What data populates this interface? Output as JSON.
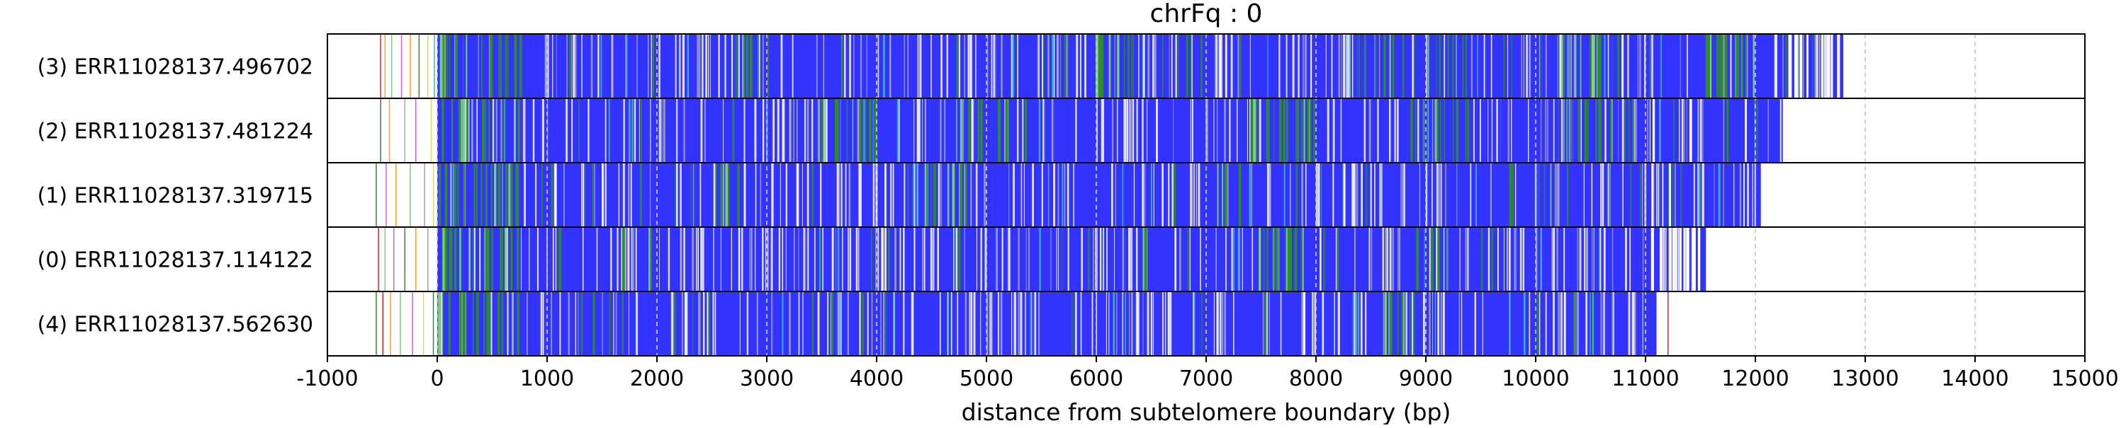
{
  "chart_data": {
    "type": "heatmap",
    "title": "chrFq : 0",
    "xlabel": "distance from subtelomere boundary (bp)",
    "ylabel": "",
    "xlim": [
      -1000,
      15000
    ],
    "x_ticks": [
      -1000,
      0,
      1000,
      2000,
      3000,
      4000,
      5000,
      6000,
      7000,
      8000,
      9000,
      10000,
      11000,
      12000,
      13000,
      14000,
      15000
    ],
    "x_tick_labels": [
      "-1000",
      "0",
      "1000",
      "2000",
      "3000",
      "4000",
      "5000",
      "6000",
      "7000",
      "8000",
      "9000",
      "10000",
      "11000",
      "12000",
      "13000",
      "14000",
      "15000"
    ],
    "grid": "vertical dashed at x ticks",
    "colors": {
      "base": "#3333ff",
      "green": "#2e8b2e",
      "light_green": "#7ccd7c",
      "white": "#ffffff",
      "grey": "#9aa0c8",
      "cyan": "#3fb6c8",
      "red": "#d62728",
      "orange": "#ff9f1c",
      "magenta": "#d060d0",
      "yellow": "#e8d44d"
    },
    "reads": [
      {
        "label": "(3) ERR11028137.496702",
        "start": 0,
        "end": 12800,
        "white_end_from": 12300,
        "prefix_marks": [
          {
            "x": -520,
            "color": "#d62728"
          },
          {
            "x": -480,
            "color": "#ff9f1c"
          },
          {
            "x": -420,
            "color": "#7ccd7c"
          },
          {
            "x": -330,
            "color": "#d060d0"
          },
          {
            "x": -250,
            "color": "#ff9f1c"
          },
          {
            "x": -170,
            "color": "#2e8b2e"
          },
          {
            "x": -90,
            "color": "#e8d44d"
          },
          {
            "x": -30,
            "color": "#3fb6c8"
          }
        ],
        "green_zones": [
          [
            0,
            750,
            0.35
          ],
          [
            2700,
            3000,
            0.15
          ],
          [
            5950,
            6350,
            0.6
          ],
          [
            6800,
            7000,
            0.2
          ],
          [
            8300,
            9400,
            0.22
          ],
          [
            10000,
            10600,
            0.2
          ],
          [
            11500,
            12000,
            0.3
          ]
        ]
      },
      {
        "label": "(2) ERR11028137.481224",
        "start": 0,
        "end": 12250,
        "white_end_from": 99999,
        "prefix_marks": [
          {
            "x": -520,
            "color": "#2e8b2e"
          },
          {
            "x": -440,
            "color": "#ff9f1c"
          },
          {
            "x": -300,
            "color": "#7ccd7c"
          },
          {
            "x": -200,
            "color": "#d060d0"
          },
          {
            "x": -60,
            "color": "#e8d44d"
          }
        ],
        "green_zones": [
          [
            0,
            750,
            0.3
          ],
          [
            3300,
            4000,
            0.25
          ],
          [
            4700,
            5200,
            0.25
          ],
          [
            7400,
            8000,
            0.4
          ],
          [
            8800,
            9400,
            0.2
          ],
          [
            10200,
            10700,
            0.25
          ],
          [
            11700,
            12100,
            0.2
          ]
        ]
      },
      {
        "label": "(1) ERR11028137.319715",
        "start": 0,
        "end": 12050,
        "white_end_from": 99999,
        "prefix_marks": [
          {
            "x": -560,
            "color": "#2e8b2e"
          },
          {
            "x": -470,
            "color": "#d060d0"
          },
          {
            "x": -380,
            "color": "#ff9f1c"
          },
          {
            "x": -250,
            "color": "#7ccd7c"
          },
          {
            "x": -120,
            "color": "#9aa0c8"
          },
          {
            "x": -40,
            "color": "#e8d44d"
          }
        ],
        "green_zones": [
          [
            0,
            750,
            0.4
          ],
          [
            2300,
            2800,
            0.15
          ],
          [
            4400,
            4900,
            0.2
          ],
          [
            7000,
            7300,
            0.15
          ],
          [
            9700,
            10200,
            0.15
          ]
        ]
      },
      {
        "label": "(0) ERR11028137.114122",
        "start": 0,
        "end": 11550,
        "white_end_from": 11050,
        "prefix_marks": [
          {
            "x": -540,
            "color": "#d62728"
          },
          {
            "x": -480,
            "color": "#7ccd7c"
          },
          {
            "x": -400,
            "color": "#d060d0"
          },
          {
            "x": -300,
            "color": "#2e8b2e"
          },
          {
            "x": -200,
            "color": "#ff9f1c"
          },
          {
            "x": -90,
            "color": "#9aa0c8"
          }
        ],
        "green_zones": [
          [
            0,
            750,
            0.45
          ],
          [
            1600,
            2000,
            0.12
          ],
          [
            6400,
            6600,
            0.2
          ],
          [
            7450,
            7900,
            0.55
          ],
          [
            8900,
            9300,
            0.15
          ]
        ]
      },
      {
        "label": "(4) ERR11028137.562630",
        "start": 0,
        "end": 11100,
        "white_end_from": 99999,
        "prefix_marks": [
          {
            "x": -560,
            "color": "#2e8b2e"
          },
          {
            "x": -500,
            "color": "#d62728"
          },
          {
            "x": -430,
            "color": "#ff9f1c"
          },
          {
            "x": -340,
            "color": "#7ccd7c"
          },
          {
            "x": -230,
            "color": "#d060d0"
          },
          {
            "x": -130,
            "color": "#e8d44d"
          },
          {
            "x": -40,
            "color": "#2e8b2e"
          }
        ],
        "green_zones": [
          [
            0,
            750,
            0.35
          ],
          [
            1200,
            1500,
            0.12
          ],
          [
            3300,
            3600,
            0.12
          ],
          [
            8600,
            8900,
            0.35
          ]
        ],
        "tail_mark": {
          "x": 11200,
          "color": "#d62728"
        }
      }
    ]
  }
}
